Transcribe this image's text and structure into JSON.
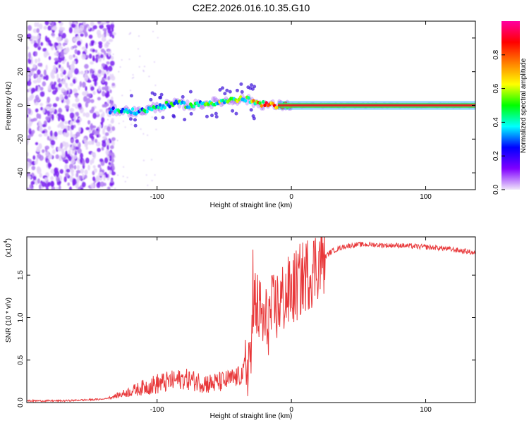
{
  "title": "C2E2.2026.016.10.35.G10",
  "chart_data": [
    {
      "type": "heatmap",
      "name": "spectrogram",
      "xlabel": "Height of straight line (km)",
      "ylabel": "Frequency (Hz)",
      "xlim": [
        -197,
        137
      ],
      "ylim": [
        -50,
        50
      ],
      "xticks": [
        -100,
        0,
        100
      ],
      "yticks": [
        -40,
        -20,
        0,
        20,
        40
      ],
      "colorbar": {
        "label": "Normalized spectral amplitude",
        "range": [
          0.0,
          1.0
        ],
        "ticks": [
          "0.0",
          "0.2",
          "0.4",
          "0.6",
          "0.8"
        ],
        "tick_values": [
          0.0,
          0.2,
          0.4,
          0.6,
          0.8
        ],
        "colors": [
          "#f0e6fa",
          "#8000ff",
          "#0000ff",
          "#00ffff",
          "#00ff00",
          "#ffff00",
          "#ff8000",
          "#ff0000",
          "#ff00a0"
        ]
      },
      "noise_region_x": [
        -197,
        -138
      ],
      "signal_track": [
        {
          "x": -135,
          "freq": -3,
          "amp": 0.35
        },
        {
          "x": -125,
          "freq": -3,
          "amp": 0.4
        },
        {
          "x": -115,
          "freq": -4,
          "amp": 0.35
        },
        {
          "x": -105,
          "freq": -2,
          "amp": 0.4
        },
        {
          "x": -95,
          "freq": 0,
          "amp": 0.4
        },
        {
          "x": -85,
          "freq": 1,
          "amp": 0.45
        },
        {
          "x": -75,
          "freq": 0,
          "amp": 0.45
        },
        {
          "x": -65,
          "freq": 1,
          "amp": 0.45
        },
        {
          "x": -55,
          "freq": 2,
          "amp": 0.5
        },
        {
          "x": -45,
          "freq": 3,
          "amp": 0.5
        },
        {
          "x": -35,
          "freq": 4,
          "amp": 0.55
        },
        {
          "x": -25,
          "freq": 1,
          "amp": 0.7
        },
        {
          "x": -15,
          "freq": 0,
          "amp": 0.75
        },
        {
          "x": -5,
          "freq": 0,
          "amp": 0.8
        },
        {
          "x": 5,
          "freq": 0,
          "amp": 0.85
        },
        {
          "x": 137,
          "freq": 0,
          "amp": 0.9
        }
      ]
    },
    {
      "type": "line",
      "name": "snr",
      "xlabel": "Height of straight line (km)",
      "ylabel": "SNR (10 * v/v)",
      "scale_label": "(x10",
      "scale_exponent": "4",
      "scale_close": ")",
      "xlim": [
        -197,
        137
      ],
      "ylim": [
        0,
        1.95
      ],
      "xticks": [
        -100,
        0,
        100
      ],
      "yticks": [
        0.0,
        0.5,
        1.0,
        1.5
      ],
      "ytick_labels": [
        "0.0",
        "0.5",
        "1.0",
        "1.5"
      ],
      "color": "#e8383a",
      "series": [
        {
          "name": "SNR",
          "x": [
            -197,
            -185,
            -170,
            -155,
            -140,
            -130,
            -120,
            -110,
            -100,
            -90,
            -80,
            -70,
            -60,
            -50,
            -40,
            -35,
            -30,
            -28,
            -25,
            -22,
            -20,
            -15,
            -10,
            -5,
            0,
            5,
            10,
            15,
            20,
            30,
            40,
            50,
            60,
            70,
            80,
            90,
            100,
            110,
            120,
            130,
            137
          ],
          "values": [
            0.02,
            0.02,
            0.02,
            0.03,
            0.04,
            0.08,
            0.13,
            0.18,
            0.22,
            0.25,
            0.28,
            0.25,
            0.22,
            0.25,
            0.3,
            0.35,
            0.6,
            1.2,
            1.1,
            1.0,
            0.9,
            1.05,
            1.15,
            1.25,
            1.3,
            1.4,
            1.5,
            1.55,
            1.65,
            1.78,
            1.84,
            1.86,
            1.86,
            1.85,
            1.85,
            1.84,
            1.83,
            1.82,
            1.8,
            1.78,
            1.76
          ]
        }
      ]
    }
  ]
}
